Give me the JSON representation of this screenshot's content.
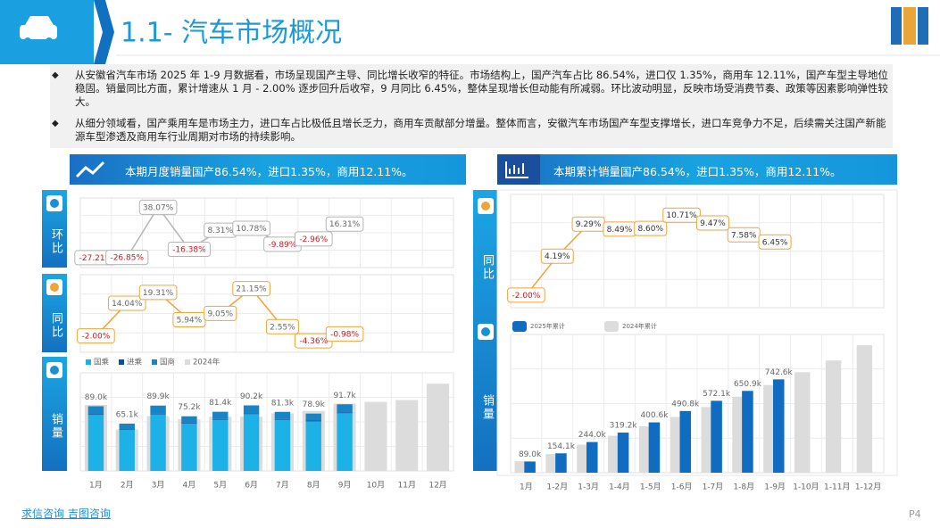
{
  "header": {
    "title": "1.1- 汽车市场概况"
  },
  "bullets": [
    "从安徽省汽车市场 2025 年 1-9 月数据看，市场呈现国产主导、同比增长收窄的特征。市场结构上，国产汽车占比 86.54%，进口仅 1.35%，商用车 12.11%，国产车型主导地位稳固。销量同比方面，累计增速从 1 月 - 2.00% 逐步回升后收窄，9 月同比 6.45%，整体呈现增长但动能有所减弱。环比波动明显，反映市场受消费节奏、政策等因素影响弹性较大。",
    "从细分领域看，国产乘用车是市场主力，进口车占比极低且增长乏力，商用车贡献部分增量。整体而言，安徽汽车市场国产车型支撑增长，进口车竞争力不足，后续需关注国产新能源车型渗透及商用车行业周期对市场的持续影响。"
  ],
  "panels": [
    {
      "title": "本期月度销量国产86.54%，进口1.35%，商用12.11%。"
    },
    {
      "title": "本期累计销量国产86.54%，进口1.35%，商用12.11%。"
    }
  ],
  "footer": {
    "source": "求信咨询 吉图咨询",
    "page": "P4"
  },
  "chart_data": [
    {
      "type": "line",
      "title": "环比",
      "color": "#b5b5b5",
      "positive_color": "#666666",
      "negative_color": "#d7141a",
      "categories": [
        "1月",
        "2月",
        "3月",
        "4月",
        "5月",
        "6月",
        "7月",
        "8月",
        "9月",
        "10月",
        "11月",
        "12月"
      ],
      "values": [
        -27.21,
        -26.85,
        38.07,
        -16.38,
        8.31,
        10.78,
        -9.89,
        -2.96,
        16.31,
        null,
        null,
        null
      ],
      "value_labels": [
        "-27.21%",
        "-26.85%",
        "38.07%",
        "-16.38%",
        "8.31%",
        "10.78%",
        "-9.89%",
        "-2.96%",
        "16.31%",
        null,
        null,
        null
      ],
      "ylim": [
        -40,
        50
      ]
    },
    {
      "type": "line",
      "title": "同比",
      "color": "#f0a43a",
      "positive_color": "#666666",
      "negative_color": "#d7141a",
      "categories": [
        "1月",
        "2月",
        "3月",
        "4月",
        "5月",
        "6月",
        "7月",
        "8月",
        "9月",
        "10月",
        "11月",
        "12月"
      ],
      "values": [
        -2.0,
        14.04,
        19.31,
        5.94,
        9.05,
        21.15,
        2.55,
        -4.36,
        -0.98,
        null,
        null,
        null
      ],
      "value_labels": [
        "-2.00%",
        "14.04%",
        "19.31%",
        "5.94%",
        "9.05%",
        "21.15%",
        "2.55%",
        "-4.36%",
        "-0.98%",
        null,
        null,
        null
      ],
      "ylim": [
        -10,
        28
      ]
    },
    {
      "type": "bar",
      "title": "销量",
      "stacked": true,
      "categories": [
        "1月",
        "2月",
        "3月",
        "4月",
        "5月",
        "6月",
        "7月",
        "8月",
        "9月",
        "10月",
        "11月",
        "12月"
      ],
      "series": [
        {
          "name": "国乘",
          "color": "#1cb2e8",
          "values": [
            77.1,
            56.3,
            77.8,
            65.1,
            70.4,
            78.1,
            70.4,
            68.2,
            79.4,
            null,
            null,
            null
          ]
        },
        {
          "name": "进乘",
          "color": "#0d4f9c",
          "values": [
            1.2,
            0.9,
            1.2,
            1.0,
            1.1,
            1.2,
            1.1,
            1.1,
            1.2,
            null,
            null,
            null
          ]
        },
        {
          "name": "国商",
          "color": "#1784c6",
          "values": [
            10.7,
            7.9,
            10.9,
            9.1,
            9.9,
            10.9,
            9.8,
            9.6,
            11.1,
            null,
            null,
            null
          ]
        }
      ],
      "comparison": {
        "name": "2024年",
        "color": "#dcdcdc",
        "values": [
          90.8,
          57.1,
          75.3,
          71.0,
          74.6,
          74.5,
          79.3,
          82.5,
          92.6,
          95.0,
          97.5,
          120.0
        ]
      },
      "totals": {
        "values": [
          89.0,
          65.1,
          89.9,
          75.2,
          81.4,
          90.2,
          81.3,
          78.9,
          91.7,
          null,
          null,
          null
        ],
        "value_labels": [
          "89.0k",
          "65.1k",
          "89.9k",
          "75.2k",
          "81.4k",
          "90.2k",
          "81.3k",
          "78.9k",
          "91.7k",
          null,
          null,
          null
        ]
      },
      "ylim": [
        0,
        135
      ]
    },
    {
      "type": "line",
      "title": "同比",
      "color": "#f0a43a",
      "positive_color": "#333333",
      "negative_color": "#d7141a",
      "categories": [
        "1月",
        "1-2月",
        "1-3月",
        "1-4月",
        "1-5月",
        "1-6月",
        "1-7月",
        "1-8月",
        "1-9月",
        "1-10月",
        "1-11月",
        "1-12月"
      ],
      "values": [
        -2.0,
        4.19,
        9.29,
        8.49,
        8.6,
        10.71,
        9.47,
        7.58,
        6.45,
        null,
        null,
        null
      ],
      "value_labels": [
        "-2.00%",
        "4.19%",
        "9.29%",
        "8.49%",
        "8.60%",
        "10.71%",
        "9.47%",
        "7.58%",
        "6.45%",
        null,
        null,
        null
      ],
      "ylim": [
        -4,
        14
      ]
    },
    {
      "type": "bar",
      "title": "销量",
      "stacked": false,
      "categories": [
        "1月",
        "1-2月",
        "1-3月",
        "1-4月",
        "1-5月",
        "1-6月",
        "1-7月",
        "1-8月",
        "1-9月",
        "1-10月",
        "1-11月",
        "1-12月"
      ],
      "series": [
        {
          "name": "2025年累计",
          "color": "#0f6cc0",
          "values": [
            89.0,
            154.1,
            244.0,
            319.2,
            400.6,
            490.8,
            572.1,
            650.9,
            742.6,
            null,
            null,
            null
          ],
          "value_labels": [
            "89.0k",
            "154.1k",
            "244.0k",
            "319.2k",
            "400.6k",
            "490.8k",
            "572.1k",
            "650.9k",
            "742.6k",
            null,
            null,
            null
          ]
        }
      ],
      "comparison": {
        "name": "2024年累计",
        "color": "#dcdcdc",
        "values": [
          90.8,
          147.9,
          223.3,
          294.2,
          368.9,
          443.3,
          522.6,
          605.0,
          697.6,
          800.0,
          893.0,
          1014.0
        ]
      },
      "ylim": [
        0,
        1100
      ]
    }
  ]
}
